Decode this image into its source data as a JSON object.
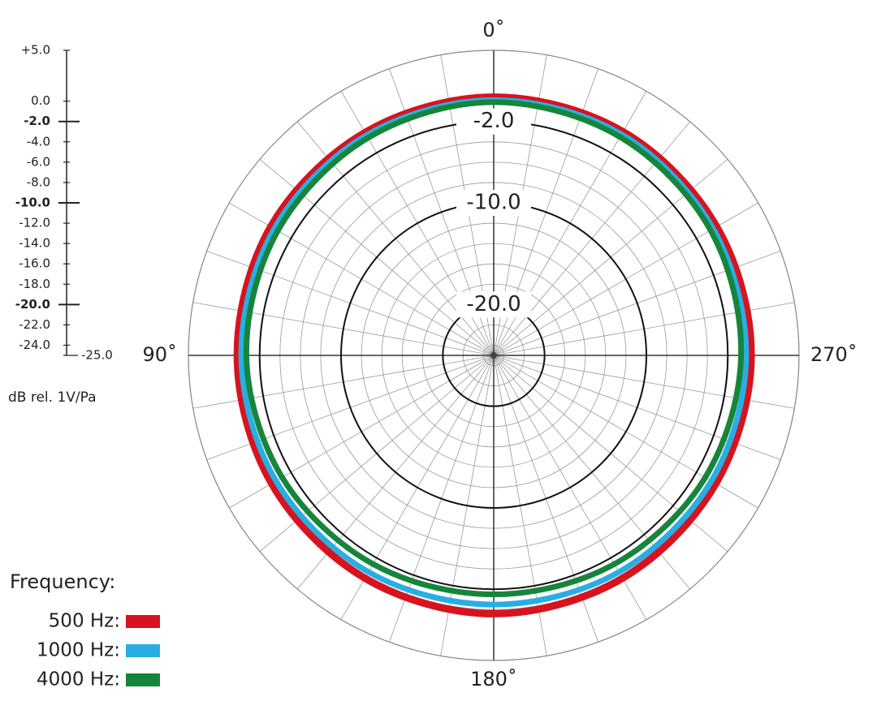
{
  "chart_data": {
    "type": "polar",
    "ylabel": "dB rel. 1V/Pa",
    "ylim": [
      -25,
      5
    ],
    "yticks": [
      {
        "value": 5,
        "label": "+5.0"
      },
      {
        "value": 0,
        "label": "0.0"
      },
      {
        "value": -2,
        "label": "-2.0"
      },
      {
        "value": -4,
        "label": "-4.0"
      },
      {
        "value": -6,
        "label": "-6.0"
      },
      {
        "value": -8,
        "label": "-8.0"
      },
      {
        "value": -10,
        "label": "-10.0"
      },
      {
        "value": -12,
        "label": "-12.0"
      },
      {
        "value": -14,
        "label": "-14.0"
      },
      {
        "value": -16,
        "label": "-16.0"
      },
      {
        "value": -18,
        "label": "-18.0"
      },
      {
        "value": -20,
        "label": "-20.0"
      },
      {
        "value": -22,
        "label": "-22.0"
      },
      {
        "value": -24,
        "label": "-24.0"
      },
      {
        "value": -25,
        "label": "-25.0"
      }
    ],
    "rings": [
      {
        "value": -2,
        "label": "-2.0"
      },
      {
        "value": -10,
        "label": "-10.0"
      },
      {
        "value": -20,
        "label": "-20.0"
      }
    ],
    "thetaticks": [
      {
        "value": 0,
        "label": "0˚"
      },
      {
        "value": 90,
        "label": "90˚"
      },
      {
        "value": 180,
        "label": "180˚"
      },
      {
        "value": 270,
        "label": "270˚"
      }
    ],
    "grid": true,
    "legend_title": "Frequency:",
    "x": [
      0,
      30,
      60,
      90,
      120,
      150,
      180,
      210,
      240,
      270,
      300,
      330
    ],
    "series": [
      {
        "name": "500 Hz:",
        "color": "#d7131f",
        "values": [
          0.4,
          0.3,
          0.3,
          0.2,
          0.2,
          0.3,
          0.4,
          0.3,
          0.2,
          0.3,
          0.3,
          0.4
        ]
      },
      {
        "name": "1000 Hz:",
        "color": "#29aee3",
        "values": [
          0.1,
          0,
          -0.1,
          -0.2,
          -0.3,
          -0.4,
          -0.5,
          -0.4,
          -0.3,
          -0.2,
          -0.1,
          0.1
        ]
      },
      {
        "name": "4000 Hz:",
        "color": "#16853b",
        "values": [
          -0.1,
          -0.3,
          -0.5,
          -0.7,
          -1.0,
          -1.3,
          -1.5,
          -1.3,
          -1.0,
          -0.7,
          -0.4,
          -0.2
        ]
      }
    ]
  }
}
